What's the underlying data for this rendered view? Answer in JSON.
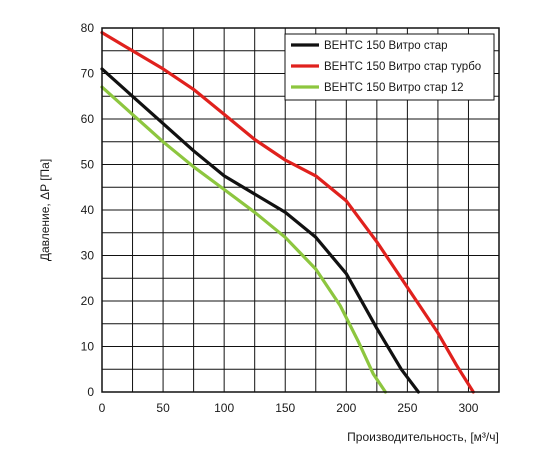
{
  "chart_data": {
    "type": "line",
    "title": "",
    "xlabel": "Производительность, [м³/ч]",
    "ylabel": "Давление, ΔP [Па]",
    "xlim": [
      0,
      325
    ],
    "ylim": [
      0,
      80
    ],
    "x_ticks": [
      0,
      50,
      100,
      150,
      200,
      250,
      300
    ],
    "y_ticks": [
      0,
      10,
      20,
      30,
      40,
      50,
      60,
      70,
      80
    ],
    "x_grid_step": 25,
    "y_grid_step": 5,
    "grid": true,
    "legend_position": "top-right",
    "series": [
      {
        "name": "ВЕНТС 150 Витро стар",
        "color": "#111111",
        "points": [
          [
            0,
            71
          ],
          [
            25,
            65
          ],
          [
            50,
            59
          ],
          [
            75,
            53
          ],
          [
            100,
            47.5
          ],
          [
            125,
            43.5
          ],
          [
            150,
            39.5
          ],
          [
            175,
            34
          ],
          [
            200,
            26
          ],
          [
            225,
            14
          ],
          [
            245,
            5
          ],
          [
            259,
            0
          ]
        ]
      },
      {
        "name": "ВЕНТС 150 Витро стар турбо",
        "color": "#e0211d",
        "points": [
          [
            0,
            79
          ],
          [
            25,
            75
          ],
          [
            50,
            71
          ],
          [
            75,
            66.5
          ],
          [
            100,
            61
          ],
          [
            125,
            55.5
          ],
          [
            150,
            51
          ],
          [
            175,
            47.5
          ],
          [
            200,
            42
          ],
          [
            225,
            33
          ],
          [
            250,
            23
          ],
          [
            275,
            13
          ],
          [
            290,
            6
          ],
          [
            304,
            0
          ]
        ]
      },
      {
        "name": "ВЕНТС 150 Витро стар 12",
        "color": "#8dc63f",
        "points": [
          [
            0,
            67
          ],
          [
            25,
            61
          ],
          [
            50,
            55
          ],
          [
            75,
            49.5
          ],
          [
            100,
            44.5
          ],
          [
            125,
            39.5
          ],
          [
            150,
            34
          ],
          [
            175,
            27
          ],
          [
            195,
            19
          ],
          [
            210,
            11
          ],
          [
            222,
            4
          ],
          [
            232,
            0
          ]
        ]
      }
    ]
  }
}
